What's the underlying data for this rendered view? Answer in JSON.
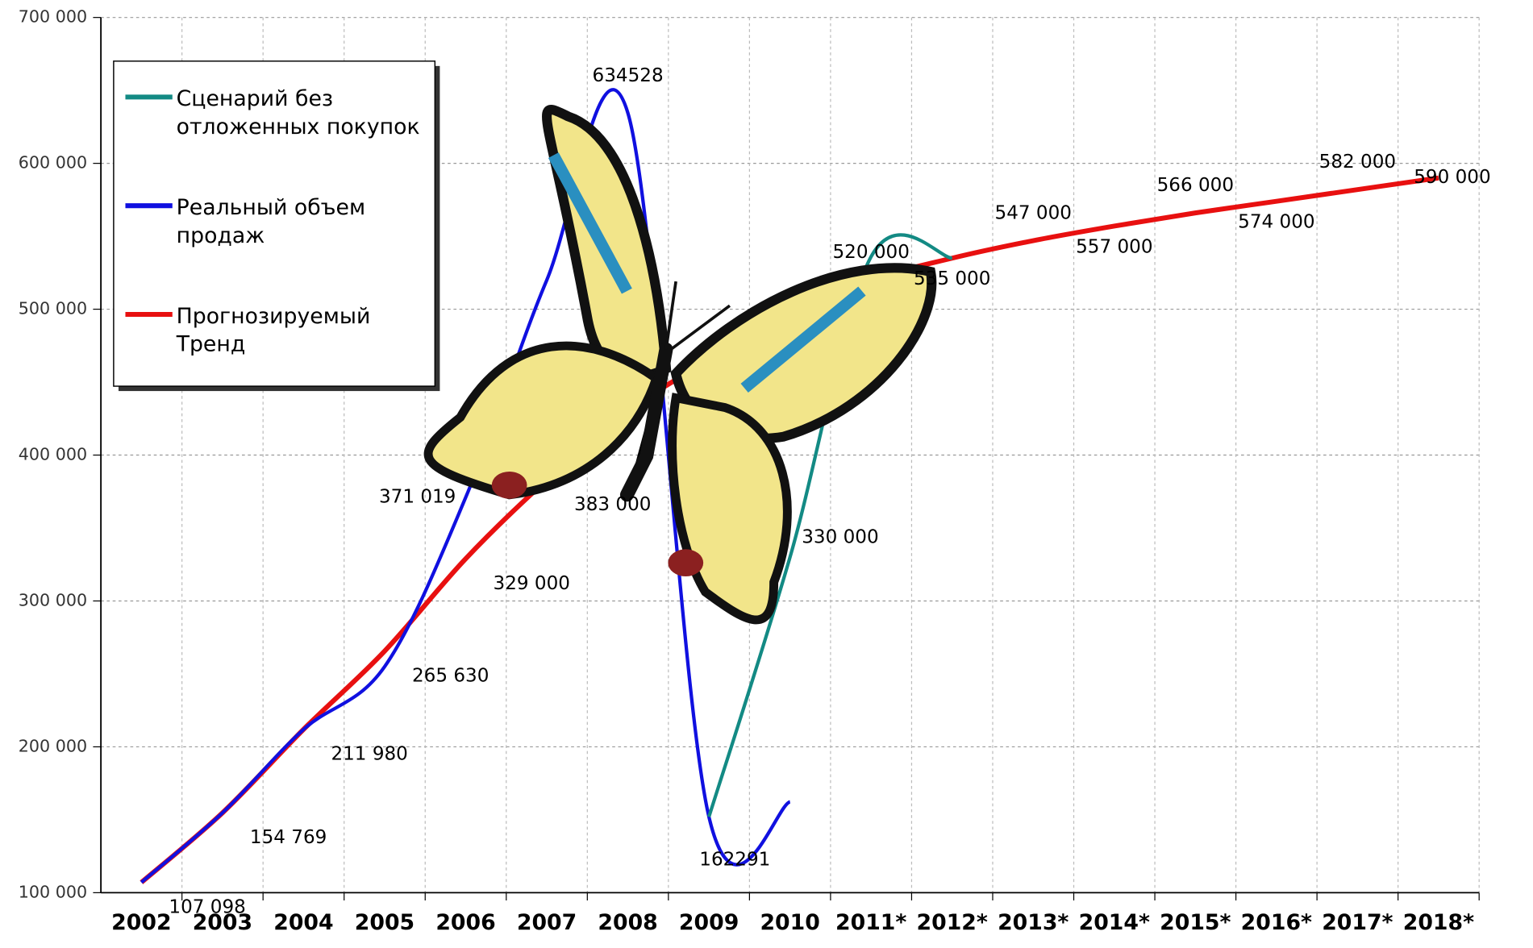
{
  "chart_data": {
    "type": "line",
    "categories": [
      "2002",
      "2003",
      "2004",
      "2005",
      "2006",
      "2007",
      "2008",
      "2009",
      "2010",
      "2011*",
      "2012*",
      "2013*",
      "2014*",
      "2015*",
      "2016*",
      "2017*",
      "2018*"
    ],
    "series": [
      {
        "name": "Сценарий без отложенных покупок",
        "color": "#138a84",
        "values": [
          null,
          null,
          null,
          null,
          null,
          null,
          null,
          152000,
          330000,
          536000,
          535000,
          null,
          null,
          null,
          null,
          null,
          null
        ],
        "value_labels": [
          null,
          null,
          null,
          null,
          null,
          null,
          null,
          null,
          "330 000",
          null,
          null,
          null,
          null,
          null,
          null,
          null,
          null
        ]
      },
      {
        "name": "Реальный объем продаж",
        "color": "#1010e0",
        "values": [
          107098,
          154769,
          211980,
          255000,
          371019,
          520000,
          634528,
          152000,
          162291,
          null,
          null,
          null,
          null,
          null,
          null,
          null,
          null
        ],
        "value_labels": [
          null,
          null,
          null,
          null,
          "371 019",
          null,
          "634528",
          null,
          "162291",
          null,
          null,
          null,
          null,
          null,
          null,
          null,
          null
        ]
      },
      {
        "name": "Прогнозируемый Тренд",
        "color": "#e81010",
        "values": [
          107098,
          154769,
          211980,
          265630,
          329000,
          383000,
          430000,
          465000,
          495000,
          520000,
          535000,
          547000,
          557000,
          566000,
          574000,
          582000,
          590000
        ],
        "value_labels": [
          "107 098",
          "154 769",
          "211 980",
          "265 630",
          "329 000",
          "383 000",
          null,
          null,
          null,
          "520 000",
          "535 000",
          "547 000",
          "557 000",
          "566 000",
          "574 000",
          "582 000",
          "590 000"
        ]
      }
    ],
    "ylim": [
      100000,
      700000
    ],
    "yticks": [
      {
        "value": 100000,
        "label": "100 000"
      },
      {
        "value": 200000,
        "label": "200 000"
      },
      {
        "value": 300000,
        "label": "300 000"
      },
      {
        "value": 400000,
        "label": "400 000"
      },
      {
        "value": 500000,
        "label": "500 000"
      },
      {
        "value": 600000,
        "label": "600 000"
      },
      {
        "value": 700000,
        "label": "700 000"
      }
    ],
    "grid": true,
    "legend": "top-left"
  }
}
